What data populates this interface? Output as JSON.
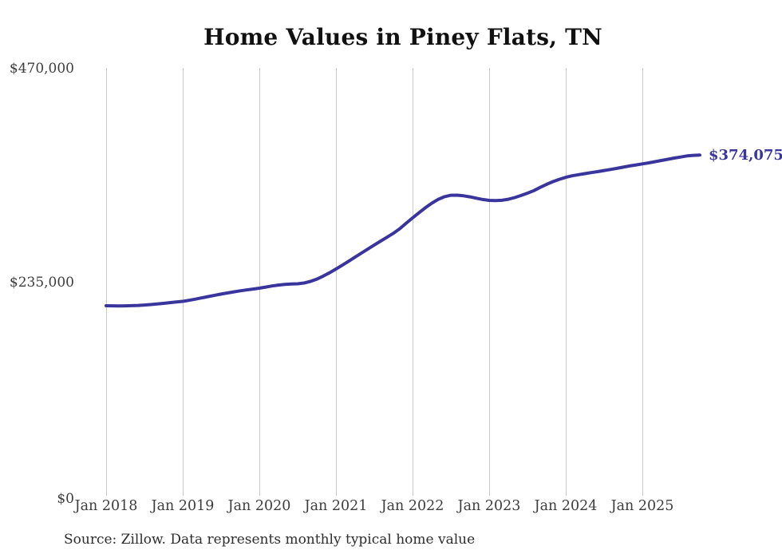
{
  "source_note": "Source: Zillow. Data represents monthly typical home value",
  "chart_data": {
    "type": "line",
    "title": "Home Values in Piney Flats, TN",
    "xlabel": "",
    "ylabel": "",
    "ylim": [
      0,
      470000
    ],
    "yticks": [
      {
        "label": "$470,000",
        "value": 470000
      },
      {
        "label": "$235,000",
        "value": 235000
      },
      {
        "label": "$0",
        "value": 0
      }
    ],
    "x_labels": [
      "Jan 2018",
      "Jan 2019",
      "Jan 2020",
      "Jan 2021",
      "Jan 2022",
      "Jan 2023",
      "Jan 2024",
      "Jan 2025"
    ],
    "frequency": "monthly",
    "x_start": "Jan 2018",
    "x_end": "Oct 2025",
    "gridlines": "vertical-yearly",
    "legend_position": "none",
    "end_label": "$374,075",
    "line_color": "#3a349d",
    "grid_color": "#cbcbcb",
    "series": [
      {
        "name": "Typical home value",
        "values": [
          208200,
          208100,
          208000,
          208100,
          208300,
          208600,
          209000,
          209500,
          210100,
          210800,
          211600,
          212300,
          213000,
          214200,
          215500,
          216900,
          218300,
          219700,
          221000,
          222300,
          223500,
          224600,
          225600,
          226600,
          227500,
          228800,
          230000,
          231000,
          231700,
          232100,
          232400,
          233200,
          235000,
          237500,
          240800,
          244500,
          248600,
          252800,
          257200,
          261700,
          266200,
          270700,
          275100,
          279400,
          283600,
          288000,
          293000,
          299000,
          304800,
          310500,
          316000,
          321000,
          325200,
          328200,
          329800,
          329900,
          329200,
          328000,
          326500,
          325100,
          324200,
          323900,
          324300,
          325400,
          327200,
          329500,
          332100,
          334900,
          338500,
          341800,
          344800,
          347400,
          349600,
          351200,
          352500,
          353600,
          354700,
          355800,
          357000,
          358200,
          359400,
          360700,
          362000,
          363200,
          364300,
          365500,
          366800,
          368100,
          369400,
          370700,
          371900,
          373100,
          373700,
          374075
        ]
      }
    ]
  }
}
